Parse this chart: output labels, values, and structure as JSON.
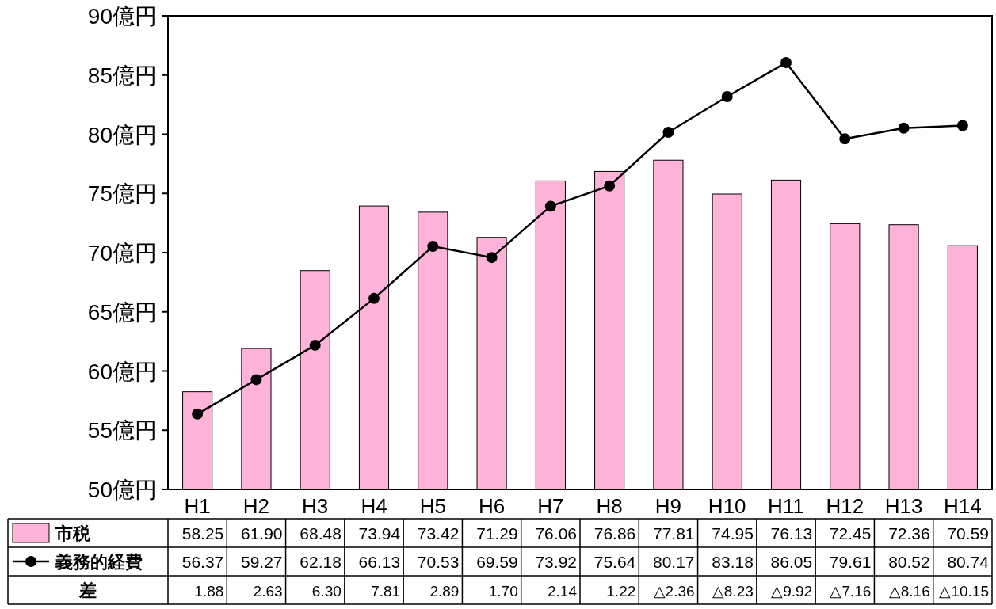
{
  "chart_data": {
    "type": "bar",
    "categories": [
      "H1",
      "H2",
      "H3",
      "H4",
      "H5",
      "H6",
      "H7",
      "H8",
      "H9",
      "H10",
      "H11",
      "H12",
      "H13",
      "H14"
    ],
    "series": [
      {
        "name": "市税",
        "color": "#ffb3d9",
        "values": [
          58.25,
          61.9,
          68.48,
          73.94,
          73.42,
          71.29,
          76.06,
          76.86,
          77.81,
          74.95,
          76.13,
          72.45,
          72.36,
          70.59
        ],
        "value_labels": [
          "58.25",
          "61.90",
          "68.48",
          "73.94",
          "73.42",
          "71.29",
          "76.06",
          "76.86",
          "77.81",
          "74.95",
          "76.13",
          "72.45",
          "72.36",
          "70.59"
        ]
      },
      {
        "name": "義務的経費",
        "type": "line",
        "color": "#000000",
        "marker": "circle",
        "values": [
          56.37,
          59.27,
          62.18,
          66.13,
          70.53,
          69.59,
          73.92,
          75.64,
          80.17,
          83.18,
          86.05,
          79.61,
          80.52,
          80.74
        ],
        "value_labels": [
          "56.37",
          "59.27",
          "62.18",
          "66.13",
          "70.53",
          "69.59",
          "73.92",
          "75.64",
          "80.17",
          "83.18",
          "86.05",
          "79.61",
          "80.52",
          "80.74"
        ]
      }
    ],
    "ylim": [
      50,
      90
    ],
    "yticks": [
      {
        "value": 50,
        "label": "50億円"
      },
      {
        "value": 55,
        "label": "55億円"
      },
      {
        "value": 60,
        "label": "60億円"
      },
      {
        "value": 65,
        "label": "65億円"
      },
      {
        "value": 70,
        "label": "70億円"
      },
      {
        "value": 75,
        "label": "75億円"
      },
      {
        "value": 80,
        "label": "80億円"
      },
      {
        "value": 85,
        "label": "85億円"
      },
      {
        "value": 90,
        "label": "90億円"
      }
    ],
    "legend": "bottom",
    "annotations": [
      "差",
      "1.88",
      "2.63",
      "6.30",
      "7.81",
      "2.89",
      "1.70",
      "2.14",
      "1.22",
      "△2.36",
      "△8.23",
      "△9.92",
      "△7.16",
      "△8.16",
      "△10.15"
    ]
  }
}
